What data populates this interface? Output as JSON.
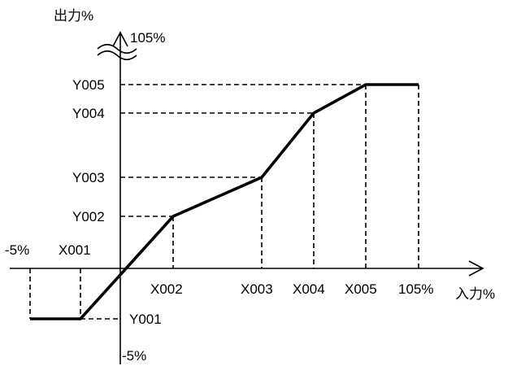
{
  "chart_data": {
    "type": "line",
    "axes": {
      "y_title": "出力%",
      "x_title": "入力%",
      "y_top_label": "105%",
      "y_bottom_label": "-5%",
      "x_left_label": "-5%",
      "x_right_label": "105%"
    },
    "x_labels": {
      "X001": "X001",
      "X002": "X002",
      "X003": "X003",
      "X004": "X004",
      "X005": "X005"
    },
    "y_labels": {
      "Y001": "Y001",
      "Y002": "Y002",
      "Y003": "Y003",
      "Y004": "Y004",
      "Y005": "Y005"
    },
    "series": [
      {
        "points": [
          {
            "x": "-5%",
            "y": "Y001"
          },
          {
            "x": "X001",
            "y": "Y001"
          },
          {
            "x": "X002",
            "y": "Y002"
          },
          {
            "x": "X003",
            "y": "Y003"
          },
          {
            "x": "X004",
            "y": "Y004"
          },
          {
            "x": "X005",
            "y": "Y005"
          },
          {
            "x": "105%",
            "y": "Y005"
          }
        ]
      }
    ]
  }
}
